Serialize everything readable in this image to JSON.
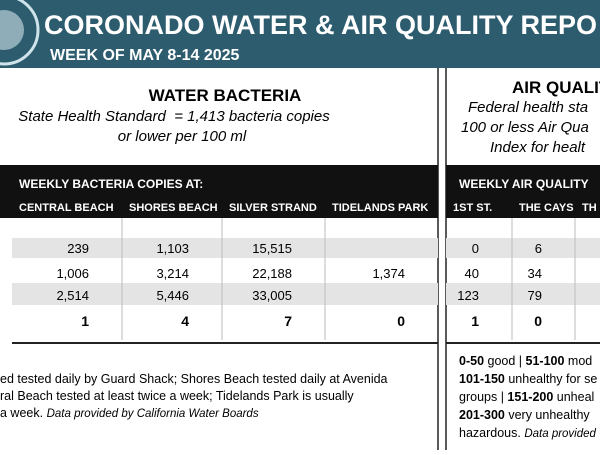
{
  "header": {
    "title": "CORONADO WATER & AIR QUALITY REPO",
    "subtitle": "WEEK OF MAY 8-14 2025"
  },
  "water": {
    "title": "WATER BACTERIA",
    "standard": [
      "State Health Standard  = 1,413 bacteria copies",
      "or lower per 100 ml"
    ],
    "table": {
      "heading": "WEEKLY BACTERIA COPIES AT:",
      "columns": [
        "CENTRAL BEACH",
        "SHORES BEACH",
        "SILVER STRAND",
        "TIDELANDS PARK"
      ],
      "rows": [
        [
          "239",
          "1,103",
          "15,515",
          null
        ],
        [
          "1,006",
          "3,214",
          "22,188",
          "1,374"
        ],
        [
          "2,514",
          "5,446",
          "33,005",
          null
        ]
      ],
      "totals": [
        "1",
        "4",
        "7",
        "0"
      ]
    },
    "notes": [
      "ed tested daily by Guard Shack; Shores Beach tested daily at Avenida",
      "ral Beach tested at least twice a week; Tidelands Park is usually",
      "a week."
    ],
    "source": "Data provided by California Water Boards"
  },
  "air": {
    "title": "AIR QUALIT",
    "standard": [
      "Federal health sta",
      "100 or less Air Qua",
      "Index for healt"
    ],
    "table": {
      "heading": "WEEKLY AIR QUALITY",
      "columns": [
        "1ST ST.",
        "THE CAYS",
        "TH"
      ],
      "rows": [
        [
          "0",
          "6",
          null
        ],
        [
          "40",
          "34",
          null
        ],
        [
          "123",
          "79",
          null
        ]
      ],
      "totals": [
        "1",
        "0",
        null
      ]
    },
    "legend": [
      [
        {
          "bold": "0-50"
        },
        {
          "text": " good | "
        },
        {
          "bold": "51-100"
        },
        {
          "text": " mod"
        }
      ],
      [
        {
          "bold": "101-150"
        },
        {
          "text": " unhealthy for se"
        }
      ],
      [
        {
          "text": "groups | "
        },
        {
          "bold": "151-200"
        },
        {
          "text": " unheal"
        }
      ],
      [
        {
          "bold": "201-300"
        },
        {
          "text": " very unhealthy"
        }
      ],
      [
        {
          "text": "hazardous. "
        },
        {
          "italic": "Data provided"
        }
      ]
    ]
  }
}
